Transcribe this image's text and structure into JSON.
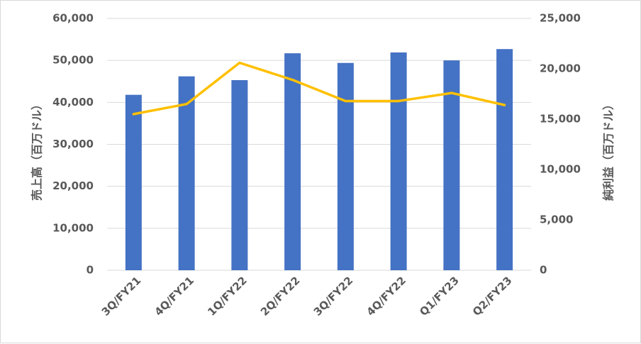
{
  "chart_data": {
    "type": "bar",
    "categories": [
      "3Q/FY21",
      "4Q/FY21",
      "1Q/FY22",
      "2Q/FY22",
      "3Q/FY22",
      "4Q/FY22",
      "Q1/FY23",
      "Q2/FY23"
    ],
    "series": [
      {
        "axis": "left",
        "kind": "bar",
        "color": "#4472c4",
        "values": [
          41800,
          46200,
          45300,
          51700,
          49400,
          51900,
          50000,
          52700
        ]
      },
      {
        "axis": "right",
        "kind": "line",
        "color": "#ffc000",
        "values": [
          15500,
          16500,
          20600,
          18900,
          16800,
          16800,
          17600,
          16400
        ]
      }
    ],
    "ylabel": "売上高（百万ドル）",
    "y2label": "純利益（百万ドル）",
    "ylim": [
      0,
      60000
    ],
    "y2lim": [
      0,
      25000
    ],
    "yticks": [
      "0",
      "10,000",
      "20,000",
      "30,000",
      "40,000",
      "50,000",
      "60,000"
    ],
    "y2ticks": [
      "0",
      "5,000",
      "10,000",
      "15,000",
      "20,000",
      "25,000"
    ],
    "grid": true,
    "gridColor": "#d9d9d9"
  }
}
